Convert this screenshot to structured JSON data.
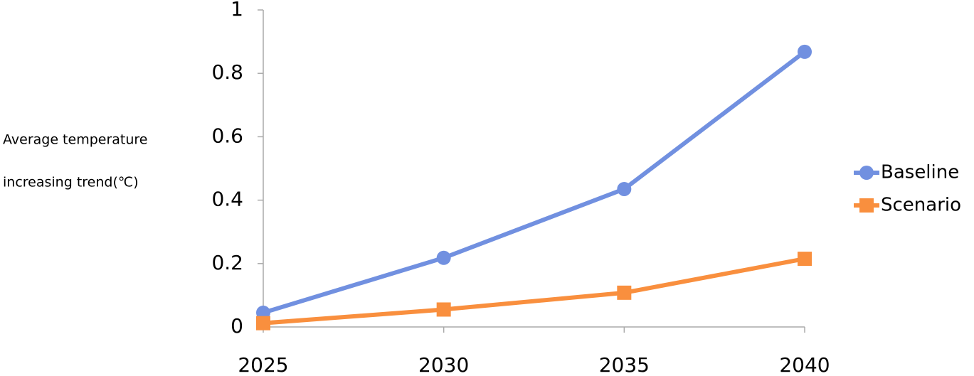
{
  "chart_data": {
    "type": "line",
    "y_label": [
      "Average temperature",
      "increasing trend(℃)"
    ],
    "categories": [
      "2025",
      "2030",
      "2035",
      "2040"
    ],
    "series": [
      {
        "name": "Baseline",
        "color": "#7190e0",
        "marker": "circle",
        "values": [
          0.045,
          0.218,
          0.435,
          0.868
        ]
      },
      {
        "name": "Scenario",
        "color": "#f98f3e",
        "marker": "square",
        "values": [
          0.012,
          0.055,
          0.108,
          0.215
        ]
      }
    ],
    "ylim": [
      0,
      1
    ],
    "yticks": [
      0,
      0.2,
      0.4,
      0.6,
      0.8,
      1
    ],
    "grid": false,
    "legend": "right"
  }
}
